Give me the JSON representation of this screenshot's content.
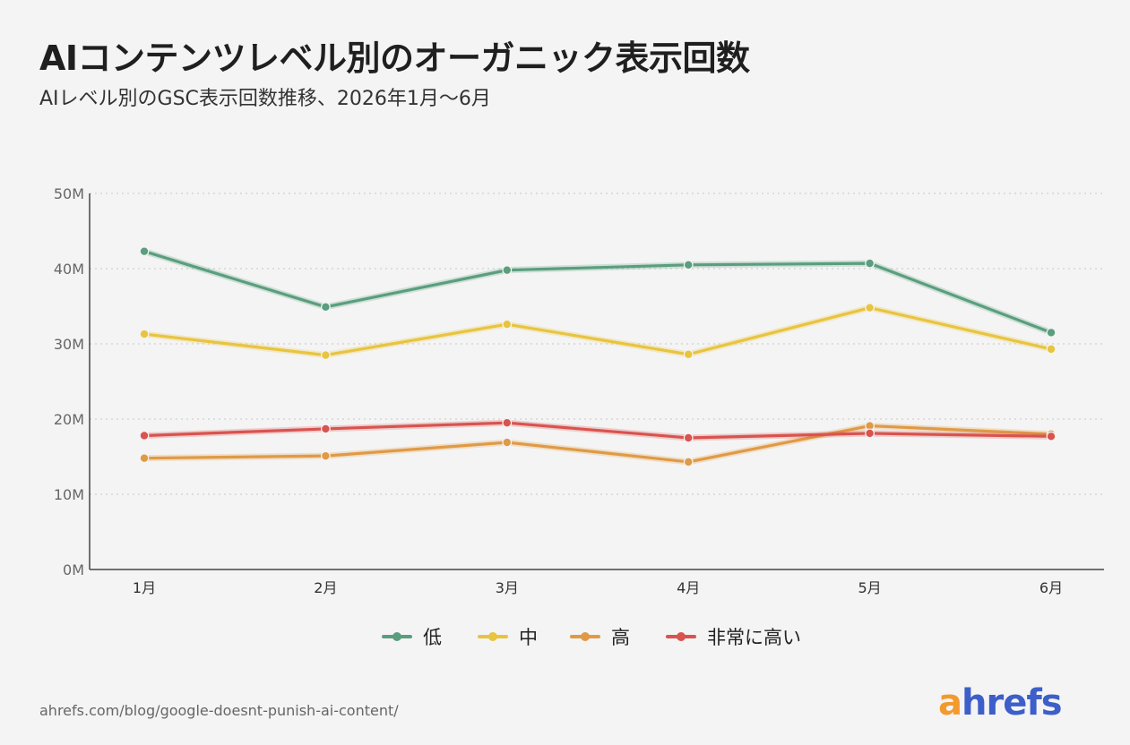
{
  "header": {
    "title": "AIコンテンツレベル別のオーガニック表示回数",
    "subtitle": "AIレベル別のGSC表示回数推移、2026年1月〜6月"
  },
  "footer": {
    "source": "ahrefs.com/blog/google-doesnt-punish-ai-content/",
    "logo_a": "a",
    "logo_rest": "hrefs"
  },
  "chart_data": {
    "type": "line",
    "categories": [
      "1月",
      "2月",
      "3月",
      "4月",
      "5月",
      "6月"
    ],
    "yticks": [
      0,
      10,
      20,
      30,
      40,
      50
    ],
    "ytick_labels": [
      "0M",
      "10M",
      "20M",
      "30M",
      "40M",
      "50M"
    ],
    "ylim": [
      0,
      50
    ],
    "grid": true,
    "legend_placement": "bottom-center",
    "series": [
      {
        "name": "低",
        "color": "#5a9e7e",
        "values": [
          42.3,
          34.9,
          39.8,
          40.5,
          40.7,
          31.5
        ]
      },
      {
        "name": "中",
        "color": "#e8c43f",
        "values": [
          31.3,
          28.5,
          32.6,
          28.6,
          34.8,
          29.3
        ]
      },
      {
        "name": "高",
        "color": "#e09a45",
        "values": [
          14.8,
          15.1,
          16.9,
          14.3,
          19.1,
          18.0
        ]
      },
      {
        "name": "非常に高い",
        "color": "#d9534f",
        "values": [
          17.8,
          18.7,
          19.5,
          17.5,
          18.1,
          17.7
        ]
      }
    ]
  }
}
